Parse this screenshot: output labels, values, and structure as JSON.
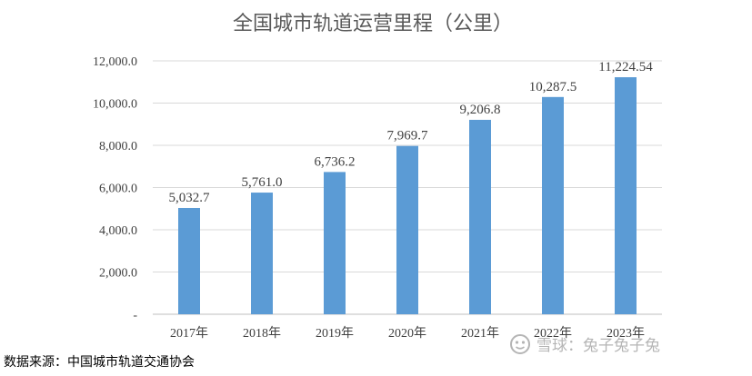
{
  "chart_data": {
    "type": "bar",
    "title": "全国城市轨道运营里程（公里）",
    "categories": [
      "2017年",
      "2018年",
      "2019年",
      "2020年",
      "2021年",
      "2022年",
      "2023年"
    ],
    "values": [
      5032.7,
      5761.0,
      6736.2,
      7969.7,
      9206.8,
      10287.5,
      11224.54
    ],
    "data_labels": [
      "5,032.7",
      "5,761.0",
      "6,736.2",
      "7,969.7",
      "9,206.8",
      "10,287.5",
      "11,224.54"
    ],
    "ylim": [
      0,
      12000
    ],
    "yticks": [
      0,
      2000,
      4000,
      6000,
      8000,
      10000,
      12000
    ],
    "ytick_labels": [
      "-",
      "2,000.0",
      "4,000.0",
      "6,000.0",
      "8,000.0",
      "10,000.0",
      "12,000.0"
    ],
    "grid": true,
    "bar_color": "#5B9BD5"
  },
  "source": "数据来源：中国城市轨道交通协会",
  "watermark": "雪球：兔子兔子兔"
}
